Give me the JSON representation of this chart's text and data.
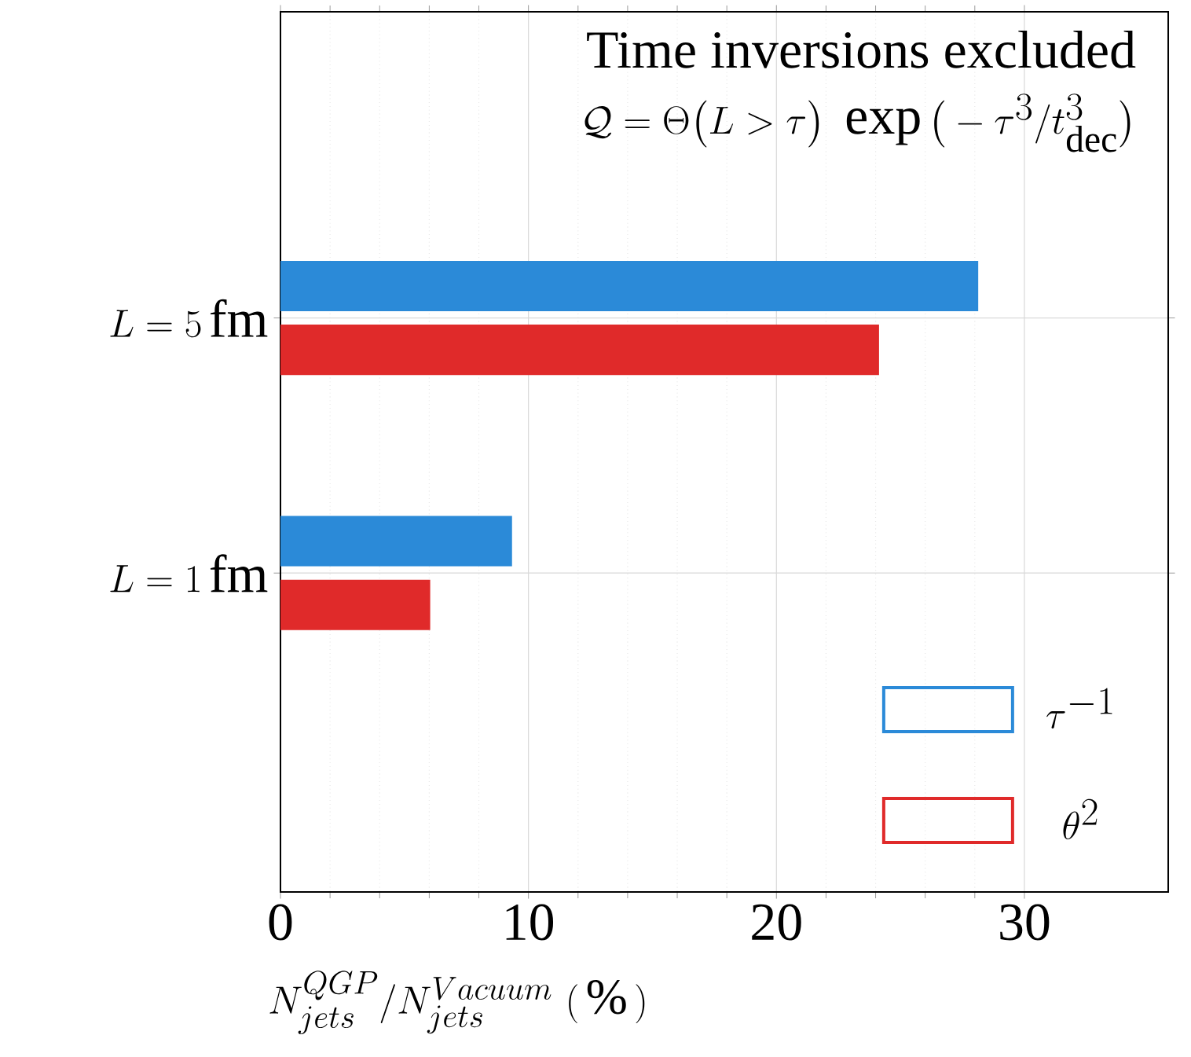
{
  "chart_data": {
    "type": "bar",
    "orientation": "horizontal",
    "title": "Time inversions excluded",
    "subtitle": "\\mathcal{Q} = \\Theta\\big(L > \\tau\\big)\\ \\exp\\big(-\\tau^{3}/t^{3}_{\\mathrm{dec}}\\big)",
    "categories": [
      "L = 5\\,\\mathrm{fm}",
      "L = 1\\,\\mathrm{fm}"
    ],
    "series": [
      {
        "name": "\\tau^{-1}",
        "color": "#2b8ad8",
        "values": [
          28.1,
          9.3
        ]
      },
      {
        "name": "\\theta^{2}",
        "color": "#e02a2a",
        "values": [
          24.1,
          6.0
        ]
      }
    ],
    "xlim": [
      0,
      35.8
    ],
    "xticks": [
      0,
      10,
      20,
      30
    ],
    "xlabel": "N^{QGP}_{jets}/N^{Vacuum}_{jets}\\ (\\,\\%\\,)",
    "grid": true,
    "legend": "bottom right"
  }
}
